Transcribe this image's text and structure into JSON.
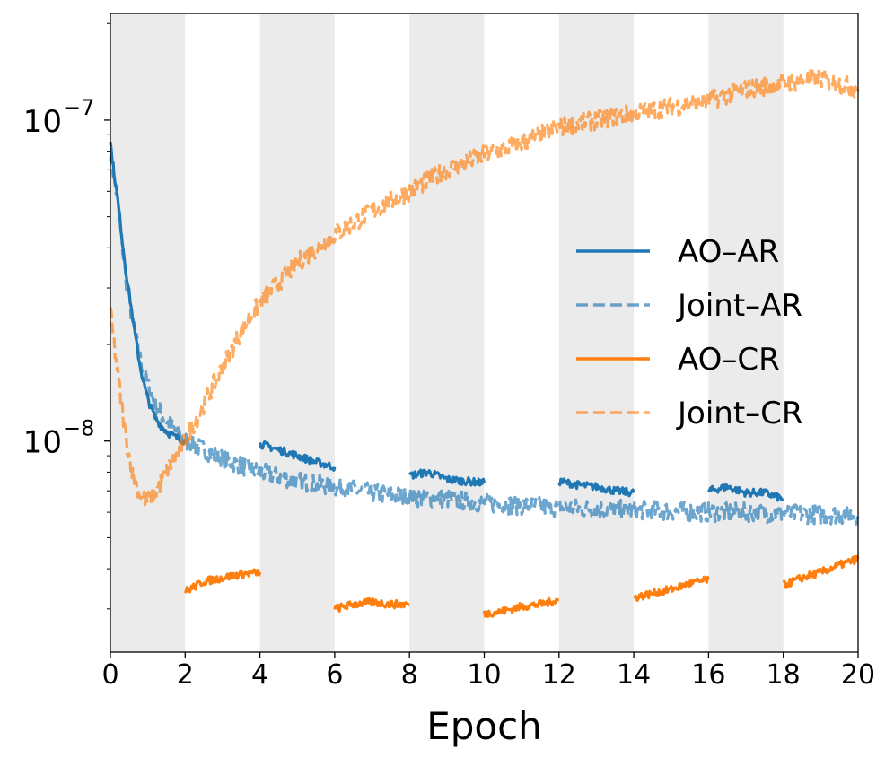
{
  "chart_data": {
    "type": "line",
    "title": "",
    "xlabel": "Epoch",
    "ylabel": "",
    "xlim": [
      0,
      20
    ],
    "ylim": [
      2.2e-09,
      2.15e-07
    ],
    "yscale": "log",
    "xticks": [
      0,
      2,
      4,
      6,
      8,
      10,
      12,
      14,
      16,
      18,
      20
    ],
    "xtick_labels": [
      "0",
      "2",
      "4",
      "6",
      "8",
      "10",
      "12",
      "14",
      "16",
      "18",
      "20"
    ],
    "yticks": [
      {
        "value": 1e-08,
        "base": "10",
        "exp": "−8"
      },
      {
        "value": 1e-07,
        "base": "10",
        "exp": "−7"
      }
    ],
    "shaded_intervals": [
      [
        0,
        2
      ],
      [
        4,
        6
      ],
      [
        8,
        10
      ],
      [
        12,
        14
      ],
      [
        16,
        18
      ]
    ],
    "shade_color": "#ebebeb",
    "legend_position": "center-right",
    "series": [
      {
        "name": "AO–AR",
        "color": "#1f77b4",
        "style": "solid",
        "opacity": 1.0,
        "segments": [
          {
            "x": [
              0,
              0.1,
              0.2,
              0.3,
              0.4,
              0.5,
              0.6,
              0.7,
              0.8,
              0.9,
              1.0,
              1.2,
              1.4,
              1.6,
              1.8,
              2.0
            ],
            "y": [
              8.5e-08,
              6.8e-08,
              5.6e-08,
              4.4e-08,
              3.5e-08,
              2.9e-08,
              2.4e-08,
              2e-08,
              1.7e-08,
              1.5e-08,
              1.35e-08,
              1.18e-08,
              1.1e-08,
              1.05e-08,
              1.02e-08,
              1e-08
            ]
          },
          {
            "x": [
              4.0,
              4.5,
              5.0,
              5.5,
              6.0
            ],
            "y": [
              9.8e-09,
              9.4e-09,
              9e-09,
              8.6e-09,
              8.3e-09
            ]
          },
          {
            "x": [
              8.0,
              8.5,
              9.0,
              9.5,
              10.0
            ],
            "y": [
              7.8e-09,
              8e-09,
              7.6e-09,
              7.5e-09,
              7.4e-09
            ]
          },
          {
            "x": [
              12.0,
              12.5,
              13.0,
              13.5,
              14.0
            ],
            "y": [
              7.5e-09,
              7.3e-09,
              7.2e-09,
              7e-09,
              6.9e-09
            ]
          },
          {
            "x": [
              16.0,
              16.5,
              17.0,
              17.5,
              18.0
            ],
            "y": [
              7e-09,
              7.2e-09,
              6.9e-09,
              6.9e-09,
              6.6e-09
            ]
          }
        ]
      },
      {
        "name": "Joint–AR",
        "color": "#1f77b4",
        "style": "dashed",
        "opacity": 0.65,
        "segments": [
          {
            "x": [
              0,
              0.2,
              0.4,
              0.6,
              0.8,
              1.0,
              1.2,
              1.5,
              2.0,
              2.5,
              3.0,
              4.0,
              5.0,
              6.0,
              7.0,
              8.0,
              9.0,
              10.0,
              11.0,
              12.0,
              13.0,
              14.0,
              15.0,
              16.0,
              17.0,
              18.0,
              19.0,
              20.0
            ],
            "y": [
              8e-08,
              5.5e-08,
              3.3e-08,
              2.3e-08,
              1.8e-08,
              1.5e-08,
              1.3e-08,
              1.15e-08,
              1e-08,
              9.4e-09,
              8.8e-09,
              8e-09,
              7.5e-09,
              7.2e-09,
              6.9e-09,
              6.7e-09,
              6.6e-09,
              6.4e-09,
              6.3e-09,
              6.2e-09,
              6.15e-09,
              6.1e-09,
              6.05e-09,
              6e-09,
              6e-09,
              5.95e-09,
              5.9e-09,
              5.9e-09
            ]
          }
        ]
      },
      {
        "name": "AO–CR",
        "color": "#ff7f0e",
        "style": "solid",
        "opacity": 1.0,
        "segments": [
          {
            "x": [
              2.0,
              2.5,
              3.0,
              3.5,
              4.0
            ],
            "y": [
              3.4e-09,
              3.65e-09,
              3.75e-09,
              3.85e-09,
              3.9e-09
            ]
          },
          {
            "x": [
              6.0,
              6.5,
              7.0,
              7.5,
              8.0
            ],
            "y": [
              3e-09,
              3.1e-09,
              3.15e-09,
              3.1e-09,
              3.1e-09
            ]
          },
          {
            "x": [
              10.0,
              10.5,
              11.0,
              11.5,
              12.0
            ],
            "y": [
              2.9e-09,
              2.95e-09,
              3.05e-09,
              3.1e-09,
              3.2e-09
            ]
          },
          {
            "x": [
              14.0,
              14.5,
              15.0,
              15.5,
              16.0
            ],
            "y": [
              3.25e-09,
              3.35e-09,
              3.45e-09,
              3.6e-09,
              3.7e-09
            ]
          },
          {
            "x": [
              18.0,
              18.5,
              19.0,
              19.5,
              20.0
            ],
            "y": [
              3.55e-09,
              3.75e-09,
              3.9e-09,
              4.1e-09,
              4.3e-09
            ]
          }
        ]
      },
      {
        "name": "Joint–CR",
        "color": "#ff7f0e",
        "style": "dashed",
        "opacity": 0.65,
        "segments": [
          {
            "x": [
              0,
              0.2,
              0.4,
              0.6,
              0.8,
              1.0,
              1.2,
              1.5,
              2.0,
              2.5,
              3.0,
              3.5,
              4.0,
              5.0,
              6.0,
              7.0,
              8.0,
              9.0,
              10.0,
              11.0,
              12.0,
              13.0,
              14.0,
              15.0,
              16.0,
              17.0,
              18.0,
              19.0,
              20.0
            ],
            "y": [
              2.5e-08,
              1.6e-08,
              1.05e-08,
              7.8e-09,
              6.8e-09,
              6.5e-09,
              6.9e-09,
              8e-09,
              1e-08,
              1.3e-08,
              1.7e-08,
              2.2e-08,
              2.7e-08,
              3.6e-08,
              4.4e-08,
              5.2e-08,
              6e-08,
              7e-08,
              7.8e-08,
              8.5e-08,
              9.5e-08,
              1e-07,
              1.05e-07,
              1.1e-07,
              1.15e-07,
              1.25e-07,
              1.3e-07,
              1.35e-07,
              1.25e-07
            ]
          }
        ]
      }
    ]
  }
}
